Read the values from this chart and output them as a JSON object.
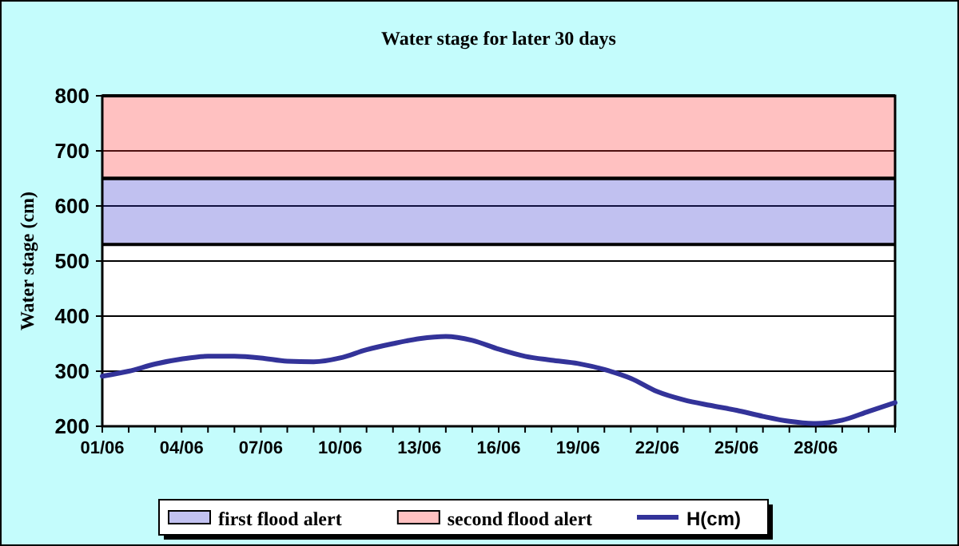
{
  "chart_data": {
    "type": "line",
    "title": "Water stage for later 30 days",
    "ylabel": "Water stage (cm)",
    "categories": [
      "01/06",
      null,
      null,
      "04/06",
      null,
      null,
      "07/06",
      null,
      null,
      "10/06",
      null,
      null,
      "13/06",
      null,
      null,
      "16/06",
      null,
      null,
      "19/06",
      null,
      null,
      "22/06",
      null,
      null,
      "25/06",
      null,
      null,
      "28/06",
      null,
      null,
      null
    ],
    "series": [
      {
        "name": "H(cm)",
        "color": "#333399",
        "values": [
          291,
          300,
          313,
          322,
          327,
          327,
          324,
          318,
          317,
          324,
          339,
          350,
          359,
          363,
          356,
          340,
          327,
          320,
          314,
          303,
          287,
          263,
          248,
          238,
          229,
          218,
          209,
          205,
          211,
          227,
          243
        ]
      }
    ],
    "bands": [
      {
        "axis": "y",
        "from": 530,
        "to": 650,
        "label": "first flood alert",
        "color": "#3333cc"
      },
      {
        "axis": "y",
        "from": 650,
        "to": 800,
        "label": "second flood alert",
        "color": "#ff3333"
      }
    ],
    "ylim": [
      200,
      800
    ],
    "yticks": [
      200,
      300,
      400,
      500,
      600,
      700,
      800
    ],
    "grid": "y",
    "legend": "bottom",
    "line_style": "solid",
    "marker": "none"
  }
}
